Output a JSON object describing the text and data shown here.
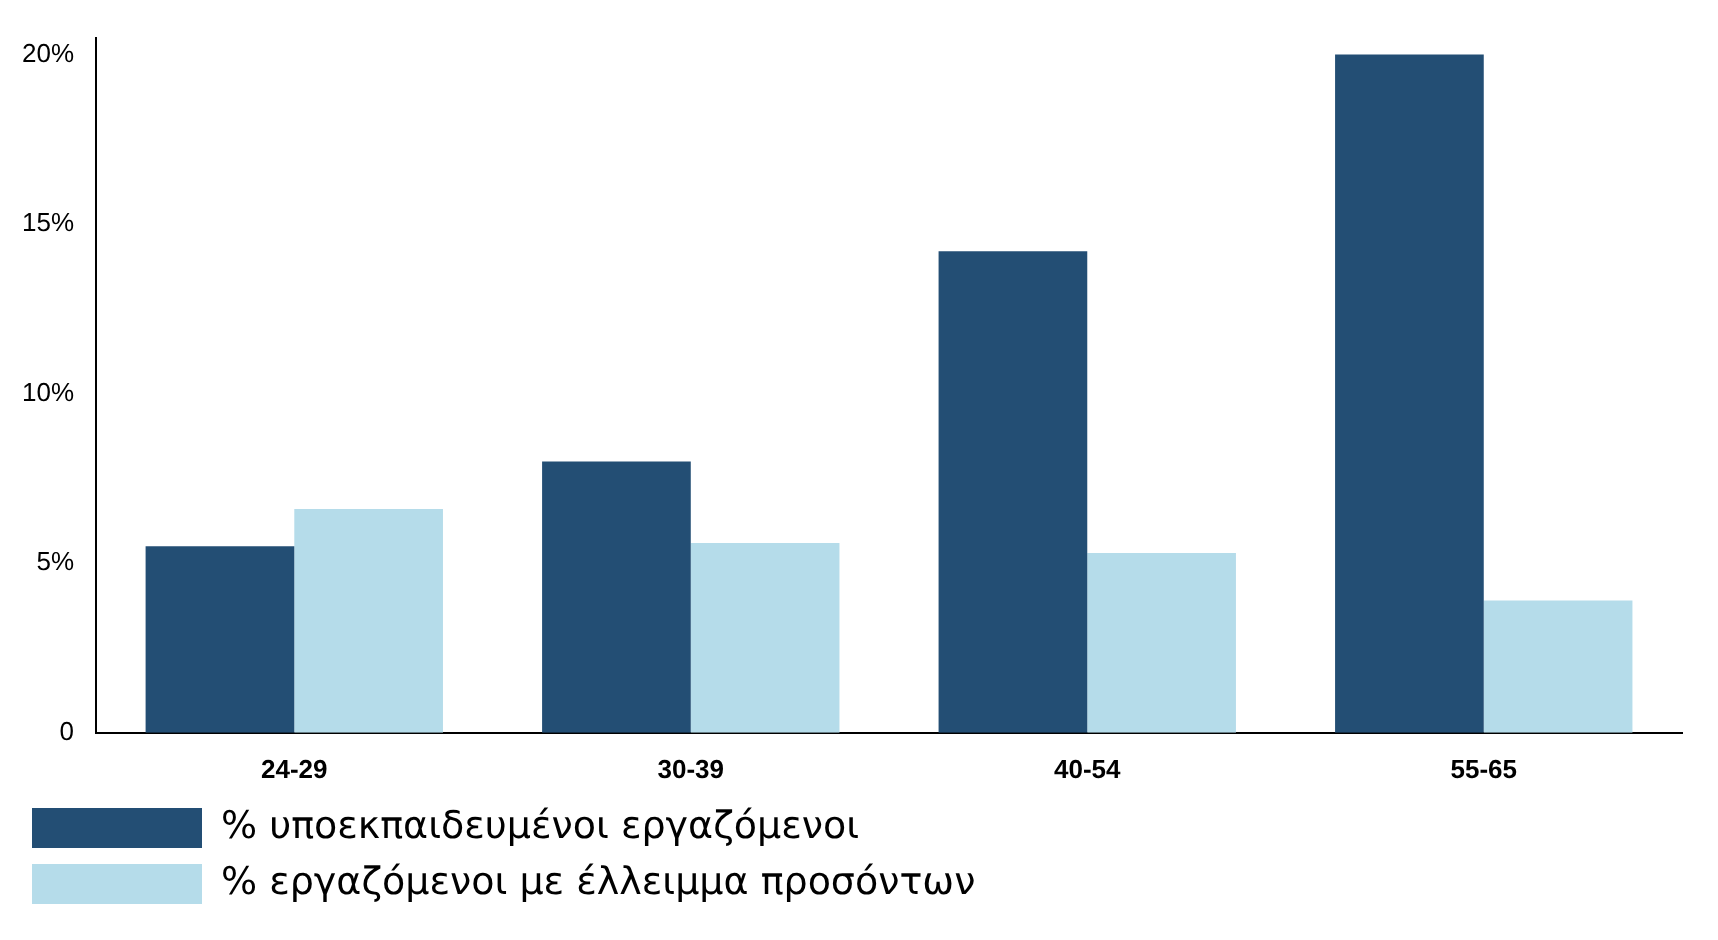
{
  "chart_data": {
    "type": "bar",
    "categories": [
      "24-29",
      "30-39",
      "40-54",
      "55-65"
    ],
    "series": [
      {
        "name": "% υποεκπαιδευμένοι εργαζόμενοι",
        "color": "#234e74",
        "values": [
          5.5,
          8.0,
          14.2,
          20.0
        ]
      },
      {
        "name": "% εργαζόμενοι με έλλειμμα προσόντων",
        "color": "#b5dcea",
        "values": [
          6.6,
          5.6,
          5.3,
          3.9
        ]
      }
    ],
    "ylim": [
      0,
      20.5
    ],
    "yticks": [
      {
        "value": 0,
        "label": "0"
      },
      {
        "value": 5,
        "label": "5%"
      },
      {
        "value": 10,
        "label": "10%"
      },
      {
        "value": 15,
        "label": "15%"
      },
      {
        "value": 20,
        "label": "20%"
      }
    ],
    "grid": false,
    "legend": "bottom"
  }
}
